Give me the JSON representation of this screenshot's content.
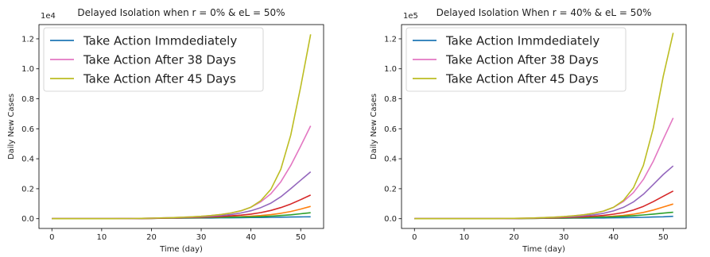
{
  "chart_data": [
    {
      "type": "line",
      "title": "Delayed Isolation when r = 0% & eL = 50%",
      "xlabel": "Time (day)",
      "ylabel": "Daily New Cases",
      "scale_label": "1e4",
      "xlim": [
        -2.6,
        54.6
      ],
      "ylim": [
        -0.065,
        1.295
      ],
      "x_ticks": [
        0,
        10,
        20,
        30,
        40,
        50
      ],
      "y_ticks": [
        0.0,
        0.2,
        0.4,
        0.6,
        0.8,
        1.0,
        1.2
      ],
      "x_tick_labels": [
        "0",
        "10",
        "20",
        "30",
        "40",
        "50"
      ],
      "y_tick_labels": [
        "0.0",
        "0.2",
        "0.4",
        "0.6",
        "0.8",
        "1.0",
        "1.2"
      ],
      "grid": false,
      "legend_position": "top-left",
      "x": [
        0,
        4,
        8,
        12,
        16,
        20,
        24,
        28,
        30,
        32,
        34,
        36,
        38,
        40,
        42,
        44,
        46,
        48,
        50,
        52
      ],
      "series": [
        {
          "name": "Take Action Immdediately",
          "color": "#1f77b4",
          "values": [
            0.0,
            0.0,
            0.0,
            0.0,
            0.001,
            0.002,
            0.003,
            0.004,
            0.005,
            0.005,
            0.006,
            0.006,
            0.007,
            0.008,
            0.008,
            0.009,
            0.01,
            0.011,
            0.012,
            0.013
          ]
        },
        {
          "name": "",
          "color": "#ff7f0e",
          "values": [
            0.0,
            0.0,
            0.0,
            0.0,
            0.001,
            0.002,
            0.004,
            0.006,
            0.007,
            0.008,
            0.01,
            0.012,
            0.014,
            0.017,
            0.021,
            0.027,
            0.036,
            0.048,
            0.064,
            0.082
          ]
        },
        {
          "name": "",
          "color": "#2ca02c",
          "values": [
            0.0,
            0.0,
            0.0,
            0.0,
            0.001,
            0.002,
            0.004,
            0.006,
            0.007,
            0.008,
            0.009,
            0.01,
            0.011,
            0.012,
            0.014,
            0.017,
            0.021,
            0.026,
            0.033,
            0.04
          ]
        },
        {
          "name": "",
          "color": "#d62728",
          "values": [
            0.0,
            0.0,
            0.0,
            0.0,
            0.001,
            0.002,
            0.005,
            0.008,
            0.01,
            0.012,
            0.015,
            0.019,
            0.024,
            0.031,
            0.041,
            0.055,
            0.074,
            0.098,
            0.127,
            0.158
          ]
        },
        {
          "name": "",
          "color": "#9467bd",
          "values": [
            0.0,
            0.0,
            0.0,
            0.0,
            0.001,
            0.003,
            0.006,
            0.01,
            0.013,
            0.016,
            0.021,
            0.028,
            0.038,
            0.053,
            0.074,
            0.104,
            0.146,
            0.2,
            0.257,
            0.313
          ]
        },
        {
          "name": "Take Action After 38 Days",
          "color": "#e377c2",
          "values": [
            0.0,
            0.0,
            0.0,
            0.0,
            0.001,
            0.004,
            0.007,
            0.012,
            0.016,
            0.021,
            0.028,
            0.038,
            0.053,
            0.077,
            0.113,
            0.166,
            0.246,
            0.355,
            0.485,
            0.62
          ]
        },
        {
          "name": "Take Action After 45 Days",
          "color": "#bcbd22",
          "values": [
            0.0,
            0.0,
            0.0,
            0.0,
            0.001,
            0.004,
            0.007,
            0.012,
            0.016,
            0.021,
            0.028,
            0.038,
            0.053,
            0.077,
            0.121,
            0.196,
            0.33,
            0.558,
            0.88,
            1.23
          ]
        }
      ]
    },
    {
      "type": "line",
      "title": "Delayed Isolation When r = 40% & eL = 50%",
      "xlabel": "Time (day)",
      "ylabel": "Daily New Cases",
      "scale_label": "1e5",
      "xlim": [
        -2.6,
        54.6
      ],
      "ylim": [
        -0.065,
        1.295
      ],
      "x_ticks": [
        0,
        10,
        20,
        30,
        40,
        50
      ],
      "y_ticks": [
        0.0,
        0.2,
        0.4,
        0.6,
        0.8,
        1.0,
        1.2
      ],
      "x_tick_labels": [
        "0",
        "10",
        "20",
        "30",
        "40",
        "50"
      ],
      "y_tick_labels": [
        "0.0",
        "0.2",
        "0.4",
        "0.6",
        "0.8",
        "1.0",
        "1.2"
      ],
      "grid": false,
      "legend_position": "top-left",
      "x": [
        0,
        4,
        8,
        12,
        16,
        20,
        24,
        28,
        30,
        32,
        34,
        36,
        38,
        40,
        42,
        44,
        46,
        48,
        50,
        52
      ],
      "series": [
        {
          "name": "Take Action Immdediately",
          "color": "#1f77b4",
          "values": [
            0.0,
            0.0,
            0.0,
            0.0,
            0.0,
            0.001,
            0.002,
            0.003,
            0.003,
            0.004,
            0.004,
            0.005,
            0.005,
            0.006,
            0.007,
            0.008,
            0.009,
            0.011,
            0.013,
            0.016
          ]
        },
        {
          "name": "",
          "color": "#ff7f0e",
          "values": [
            0.0,
            0.0,
            0.0,
            0.0,
            0.0,
            0.001,
            0.002,
            0.004,
            0.005,
            0.006,
            0.008,
            0.01,
            0.013,
            0.017,
            0.022,
            0.03,
            0.042,
            0.058,
            0.078,
            0.098
          ]
        },
        {
          "name": "",
          "color": "#2ca02c",
          "values": [
            0.0,
            0.0,
            0.0,
            0.0,
            0.0,
            0.001,
            0.002,
            0.004,
            0.005,
            0.006,
            0.007,
            0.009,
            0.011,
            0.013,
            0.016,
            0.02,
            0.025,
            0.031,
            0.037,
            0.043
          ]
        },
        {
          "name": "",
          "color": "#d62728",
          "values": [
            0.0,
            0.0,
            0.0,
            0.0,
            0.0,
            0.001,
            0.003,
            0.006,
            0.008,
            0.01,
            0.013,
            0.017,
            0.022,
            0.03,
            0.041,
            0.058,
            0.082,
            0.114,
            0.15,
            0.185
          ]
        },
        {
          "name": "",
          "color": "#9467bd",
          "values": [
            0.0,
            0.0,
            0.0,
            0.0,
            0.0,
            0.001,
            0.004,
            0.008,
            0.011,
            0.014,
            0.019,
            0.026,
            0.036,
            0.052,
            0.076,
            0.112,
            0.163,
            0.228,
            0.295,
            0.352
          ]
        },
        {
          "name": "Take Action After 38 Days",
          "color": "#e377c2",
          "values": [
            0.0,
            0.0,
            0.0,
            0.0,
            0.0,
            0.002,
            0.005,
            0.01,
            0.014,
            0.019,
            0.026,
            0.036,
            0.051,
            0.076,
            0.115,
            0.174,
            0.262,
            0.384,
            0.53,
            0.672
          ]
        },
        {
          "name": "Take Action After 45 Days",
          "color": "#bcbd22",
          "values": [
            0.0,
            0.0,
            0.0,
            0.0,
            0.0,
            0.002,
            0.005,
            0.01,
            0.014,
            0.019,
            0.026,
            0.036,
            0.051,
            0.076,
            0.122,
            0.206,
            0.355,
            0.605,
            0.95,
            1.24
          ]
        }
      ]
    }
  ]
}
